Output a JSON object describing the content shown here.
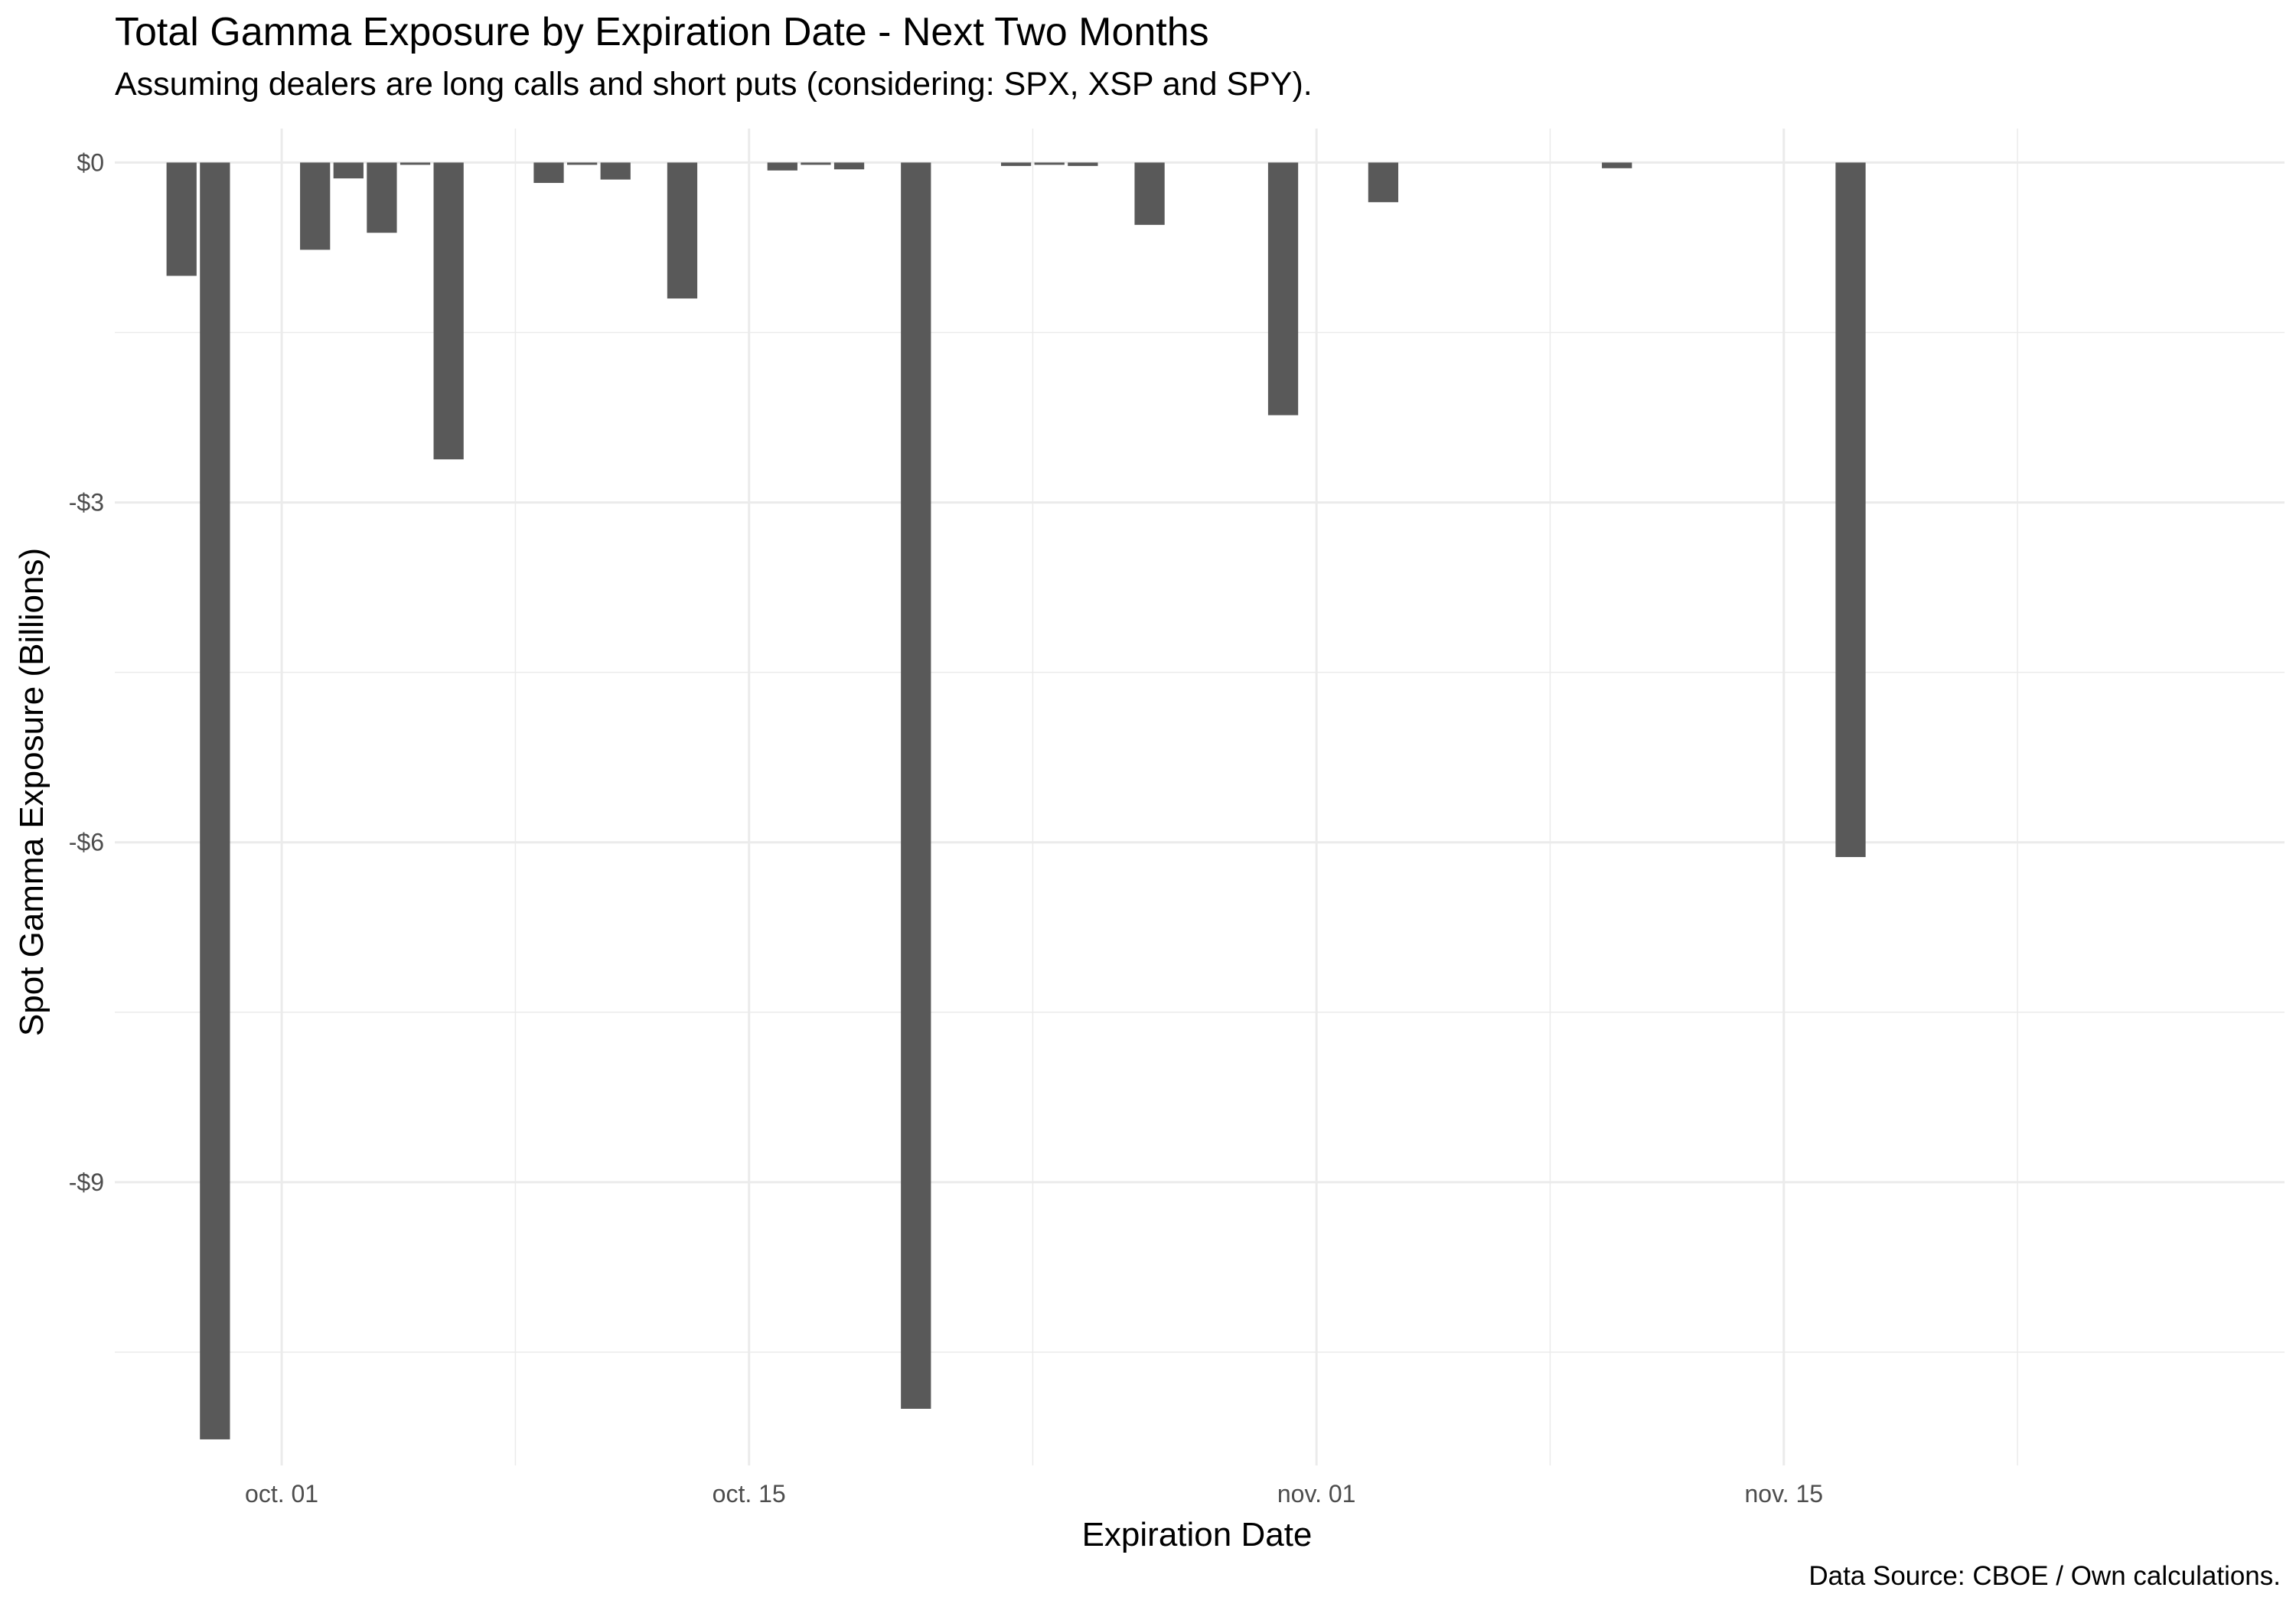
{
  "chart_data": {
    "type": "bar",
    "title": "Total Gamma Exposure by Expiration Date - Next Two Months",
    "subtitle": "Assuming dealers are long calls and short puts (considering: SPX, XSP and SPY).",
    "caption": "Data Source: CBOE / Own calculations.",
    "xlabel": "Expiration Date",
    "ylabel": "Spot Gamma Exposure (Billions)",
    "x_ticks": [
      {
        "date": "2023-10-01",
        "label": "oct. 01"
      },
      {
        "date": "2023-10-15",
        "label": "oct. 15"
      },
      {
        "date": "2023-11-01",
        "label": "nov. 01"
      },
      {
        "date": "2023-11-15",
        "label": "nov. 15"
      }
    ],
    "y_ticks": [
      {
        "value": 0,
        "label": "$0"
      },
      {
        "value": -3,
        "label": "-$3"
      },
      {
        "value": -6,
        "label": "-$6"
      },
      {
        "value": -9,
        "label": "-$9"
      }
    ],
    "xlim": [
      "2023-09-26",
      "2023-11-30"
    ],
    "ylim": [
      -11.5,
      0.3
    ],
    "grid": true,
    "bar_color": "#595959",
    "gridline_color": "#ebebeb",
    "points": [
      {
        "date": "2023-09-28",
        "value": -1.0
      },
      {
        "date": "2023-09-29",
        "value": -11.27
      },
      {
        "date": "2023-10-02",
        "value": -0.77
      },
      {
        "date": "2023-10-03",
        "value": -0.14
      },
      {
        "date": "2023-10-04",
        "value": -0.62
      },
      {
        "date": "2023-10-05",
        "value": -0.02
      },
      {
        "date": "2023-10-06",
        "value": -2.62
      },
      {
        "date": "2023-10-09",
        "value": -0.18
      },
      {
        "date": "2023-10-10",
        "value": -0.02
      },
      {
        "date": "2023-10-11",
        "value": -0.15
      },
      {
        "date": "2023-10-13",
        "value": -1.2
      },
      {
        "date": "2023-10-16",
        "value": -0.07
      },
      {
        "date": "2023-10-17",
        "value": -0.02
      },
      {
        "date": "2023-10-18",
        "value": -0.06
      },
      {
        "date": "2023-10-20",
        "value": -11.0
      },
      {
        "date": "2023-10-23",
        "value": -0.03
      },
      {
        "date": "2023-10-24",
        "value": -0.02
      },
      {
        "date": "2023-10-25",
        "value": -0.03
      },
      {
        "date": "2023-10-27",
        "value": -0.55
      },
      {
        "date": "2023-10-31",
        "value": -2.23
      },
      {
        "date": "2023-11-03",
        "value": -0.35
      },
      {
        "date": "2023-11-10",
        "value": -0.05
      },
      {
        "date": "2023-11-17",
        "value": -6.13
      }
    ]
  }
}
